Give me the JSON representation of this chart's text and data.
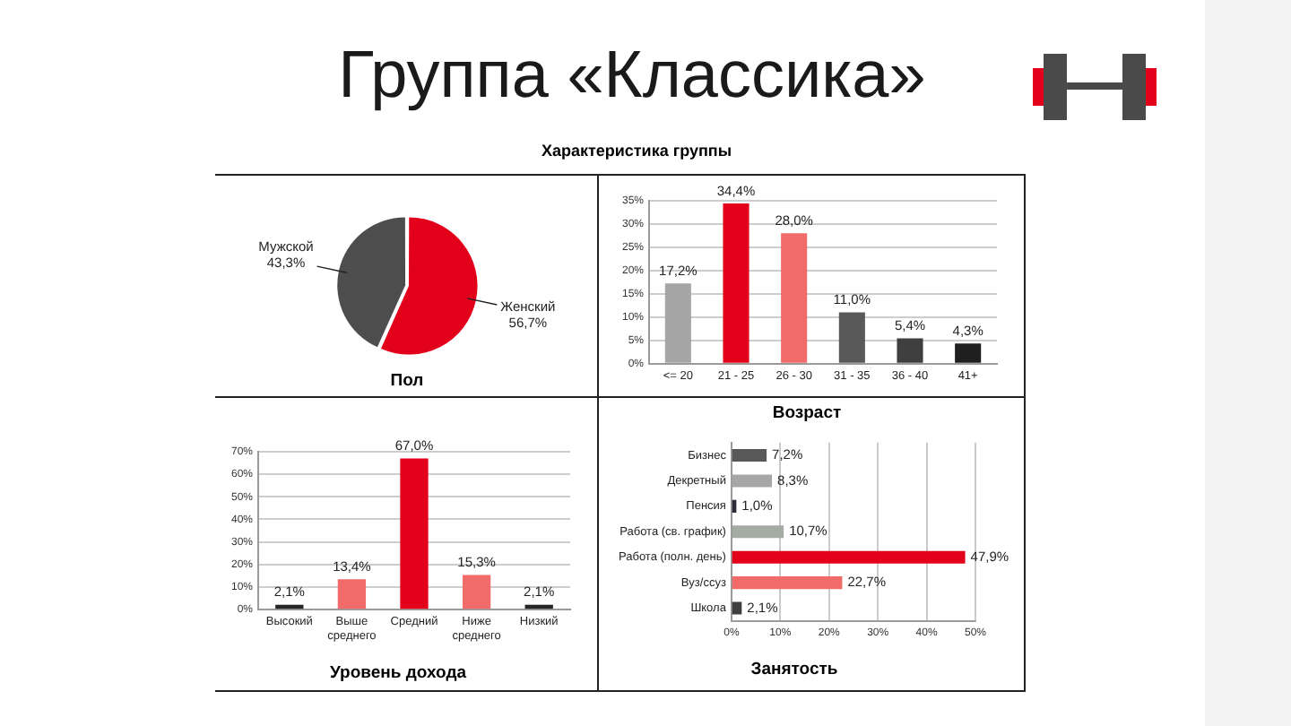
{
  "chart_data": [
    {
      "type": "pie",
      "title": "Пол",
      "categories": [
        "Женский",
        "Мужской"
      ],
      "values": [
        56.7,
        43.3
      ],
      "colors": [
        "#e3001b",
        "#4d4d4d"
      ],
      "value_labels": [
        "56,7%",
        "43,3%"
      ],
      "annotations": [
        "Группа «Классика»",
        "Характеристика группы"
      ]
    },
    {
      "type": "bar",
      "title": "Возраст",
      "categories": [
        "<= 20",
        "21 - 25",
        "26 - 30",
        "31 - 35",
        "36 - 40",
        "41+"
      ],
      "values": [
        17.2,
        34.4,
        28.0,
        11.0,
        5.4,
        4.3
      ],
      "colors": [
        "#a6a6a6",
        "#e3001b",
        "#f26b6b",
        "#595959",
        "#3f3f3f",
        "#1f1f1f"
      ],
      "value_labels": [
        "17,2%",
        "34,4%",
        "28,0%",
        "11,0%",
        "5,4%",
        "4,3%"
      ],
      "ylim": [
        0,
        35
      ],
      "yticks": [
        {
          "value": 0,
          "label": "0%"
        },
        {
          "value": 5,
          "label": "5%"
        },
        {
          "value": 10,
          "label": "10%"
        },
        {
          "value": 15,
          "label": "15%"
        },
        {
          "value": 20,
          "label": "20%"
        },
        {
          "value": 25,
          "label": "25%"
        },
        {
          "value": 30,
          "label": "30%"
        },
        {
          "value": 35,
          "label": "35%"
        }
      ],
      "grid": "y"
    },
    {
      "type": "bar",
      "title": "Уровень дохода",
      "categories": [
        "Высокий",
        "Выше среднего",
        "Средний",
        "Ниже среднего",
        "Низкий"
      ],
      "values": [
        2.1,
        13.4,
        67.0,
        15.3,
        2.1
      ],
      "colors": [
        "#262626",
        "#f26b6b",
        "#e3001b",
        "#f26b6b",
        "#262626"
      ],
      "value_labels": [
        "2,1%",
        "13,4%",
        "67,0%",
        "15,3%",
        "2,1%"
      ],
      "ylim": [
        0,
        70
      ],
      "yticks": [
        {
          "value": 0,
          "label": "0%"
        },
        {
          "value": 10,
          "label": "10%"
        },
        {
          "value": 20,
          "label": "20%"
        },
        {
          "value": 30,
          "label": "30%"
        },
        {
          "value": 40,
          "label": "40%"
        },
        {
          "value": 50,
          "label": "50%"
        },
        {
          "value": 60,
          "label": "60%"
        },
        {
          "value": 70,
          "label": "70%"
        }
      ],
      "grid": "y"
    },
    {
      "type": "bar",
      "orientation": "horizontal",
      "title": "Занятость",
      "categories": [
        "Бизнес",
        "Декретный",
        "Пенсия",
        "Работа (св. график)",
        "Работа (полн. день)",
        "Вуз/ссуз",
        "Школа"
      ],
      "values": [
        7.2,
        8.3,
        1.0,
        10.7,
        47.9,
        22.7,
        2.1
      ],
      "colors": [
        "#595959",
        "#a6a6a6",
        "#2b2b3a",
        "#a3aba3",
        "#e3001b",
        "#f26b6b",
        "#3f3f3f"
      ],
      "value_labels": [
        "7,2%",
        "8,3%",
        "1,0%",
        "10,7%",
        "47,9%",
        "22,7%",
        "2,1%"
      ],
      "xlim": [
        0,
        50
      ],
      "xticks": [
        {
          "value": 0,
          "label": "0%"
        },
        {
          "value": 10,
          "label": "10%"
        },
        {
          "value": 20,
          "label": "20%"
        },
        {
          "value": 30,
          "label": "30%"
        },
        {
          "value": 40,
          "label": "40%"
        },
        {
          "value": 50,
          "label": "50%"
        }
      ],
      "grid": "x"
    }
  ]
}
